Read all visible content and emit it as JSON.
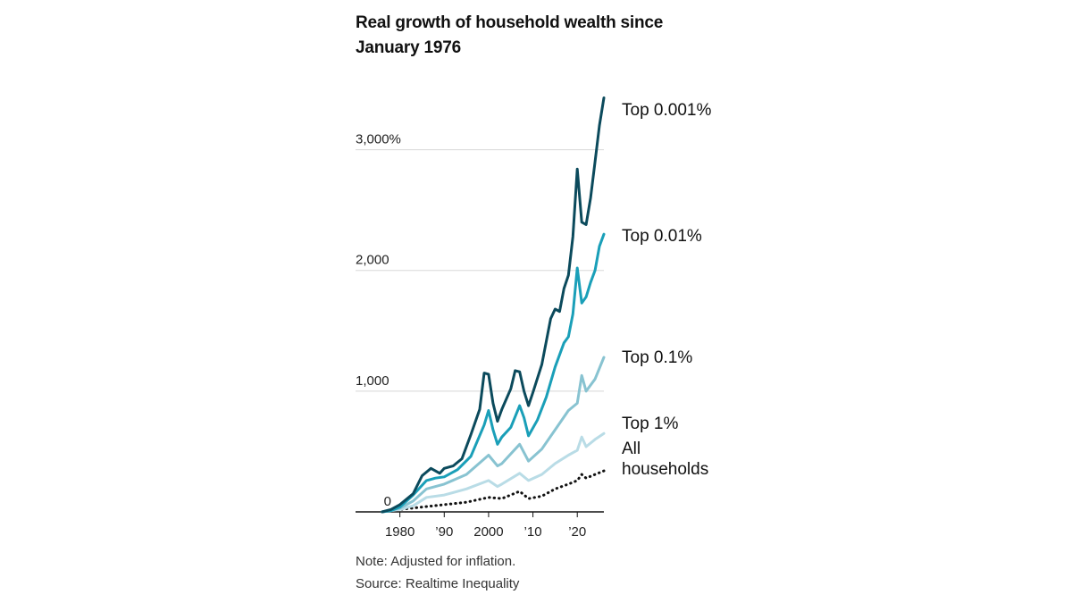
{
  "chart_data": {
    "type": "line",
    "title": "Real growth of household wealth since January 1976",
    "title_lines": [
      "Real growth of household wealth since",
      "January 1976"
    ],
    "ylabel": "",
    "xlabel": "",
    "ylim": [
      0,
      3500
    ],
    "xlim": [
      1970,
      2026
    ],
    "grid": true,
    "legend_placement": "right (direct labels)",
    "y_ticks": [
      {
        "value": 0,
        "label": "0"
      },
      {
        "value": 1000,
        "label": "1,000"
      },
      {
        "value": 2000,
        "label": "2,000"
      },
      {
        "value": 3000,
        "label": "3,000%"
      }
    ],
    "x_ticks": [
      {
        "value": 1980,
        "label": "1980"
      },
      {
        "value": 1990,
        "label": "’90"
      },
      {
        "value": 2000,
        "label": "2000"
      },
      {
        "value": 2010,
        "label": "’10"
      },
      {
        "value": 2020,
        "label": "’20"
      }
    ],
    "series": [
      {
        "name": "All households",
        "label_lines": [
          "All",
          "households"
        ],
        "color": "#111111",
        "style": "dotted",
        "points": [
          [
            1976,
            0
          ],
          [
            1980,
            20
          ],
          [
            1985,
            40
          ],
          [
            1990,
            60
          ],
          [
            1995,
            80
          ],
          [
            2000,
            120
          ],
          [
            2003,
            110
          ],
          [
            2007,
            170
          ],
          [
            2009,
            110
          ],
          [
            2012,
            130
          ],
          [
            2015,
            190
          ],
          [
            2018,
            230
          ],
          [
            2020,
            260
          ],
          [
            2021,
            310
          ],
          [
            2022,
            280
          ],
          [
            2024,
            310
          ],
          [
            2026,
            340
          ]
        ]
      },
      {
        "name": "Top 1%",
        "label_lines": [
          "Top 1%"
        ],
        "color": "#b9dce6",
        "style": "solid",
        "points": [
          [
            1976,
            0
          ],
          [
            1980,
            20
          ],
          [
            1983,
            50
          ],
          [
            1986,
            120
          ],
          [
            1990,
            140
          ],
          [
            1995,
            190
          ],
          [
            2000,
            260
          ],
          [
            2002,
            210
          ],
          [
            2003,
            230
          ],
          [
            2007,
            320
          ],
          [
            2009,
            260
          ],
          [
            2012,
            310
          ],
          [
            2015,
            400
          ],
          [
            2018,
            470
          ],
          [
            2020,
            510
          ],
          [
            2021,
            620
          ],
          [
            2022,
            540
          ],
          [
            2024,
            600
          ],
          [
            2026,
            650
          ]
        ]
      },
      {
        "name": "Top 0.1%",
        "label_lines": [
          "Top 0.1%"
        ],
        "color": "#88c3d1",
        "style": "solid",
        "points": [
          [
            1976,
            0
          ],
          [
            1980,
            30
          ],
          [
            1983,
            90
          ],
          [
            1986,
            190
          ],
          [
            1990,
            230
          ],
          [
            1995,
            310
          ],
          [
            2000,
            470
          ],
          [
            2002,
            380
          ],
          [
            2003,
            400
          ],
          [
            2007,
            560
          ],
          [
            2009,
            420
          ],
          [
            2012,
            520
          ],
          [
            2015,
            680
          ],
          [
            2018,
            840
          ],
          [
            2020,
            900
          ],
          [
            2021,
            1130
          ],
          [
            2022,
            1000
          ],
          [
            2024,
            1100
          ],
          [
            2026,
            1280
          ]
        ]
      },
      {
        "name": "Top 0.01%",
        "label_lines": [
          "Top 0.01%"
        ],
        "color": "#1a9fb8",
        "style": "solid",
        "points": [
          [
            1976,
            0
          ],
          [
            1978,
            10
          ],
          [
            1980,
            40
          ],
          [
            1983,
            140
          ],
          [
            1986,
            260
          ],
          [
            1988,
            280
          ],
          [
            1990,
            290
          ],
          [
            1993,
            350
          ],
          [
            1996,
            460
          ],
          [
            1999,
            720
          ],
          [
            2000,
            840
          ],
          [
            2001,
            680
          ],
          [
            2002,
            560
          ],
          [
            2003,
            620
          ],
          [
            2005,
            700
          ],
          [
            2007,
            880
          ],
          [
            2008,
            780
          ],
          [
            2009,
            630
          ],
          [
            2011,
            760
          ],
          [
            2013,
            950
          ],
          [
            2015,
            1200
          ],
          [
            2017,
            1400
          ],
          [
            2018,
            1450
          ],
          [
            2019,
            1640
          ],
          [
            2020,
            2020
          ],
          [
            2021,
            1730
          ],
          [
            2022,
            1780
          ],
          [
            2023,
            1900
          ],
          [
            2024,
            2000
          ],
          [
            2025,
            2200
          ],
          [
            2026,
            2300
          ]
        ]
      },
      {
        "name": "Top 0.001%",
        "label_lines": [
          "Top 0.001%"
        ],
        "color": "#0b4a5c",
        "style": "solid",
        "points": [
          [
            1976,
            0
          ],
          [
            1978,
            20
          ],
          [
            1980,
            60
          ],
          [
            1983,
            150
          ],
          [
            1985,
            300
          ],
          [
            1987,
            360
          ],
          [
            1989,
            320
          ],
          [
            1990,
            360
          ],
          [
            1992,
            380
          ],
          [
            1994,
            440
          ],
          [
            1996,
            640
          ],
          [
            1998,
            850
          ],
          [
            1999,
            1150
          ],
          [
            2000,
            1140
          ],
          [
            2001,
            900
          ],
          [
            2002,
            750
          ],
          [
            2003,
            850
          ],
          [
            2005,
            1020
          ],
          [
            2006,
            1170
          ],
          [
            2007,
            1160
          ],
          [
            2008,
            1000
          ],
          [
            2009,
            880
          ],
          [
            2010,
            990
          ],
          [
            2012,
            1220
          ],
          [
            2014,
            1600
          ],
          [
            2015,
            1680
          ],
          [
            2016,
            1660
          ],
          [
            2017,
            1850
          ],
          [
            2018,
            1960
          ],
          [
            2019,
            2280
          ],
          [
            2020,
            2840
          ],
          [
            2021,
            2400
          ],
          [
            2022,
            2380
          ],
          [
            2023,
            2600
          ],
          [
            2024,
            2900
          ],
          [
            2025,
            3200
          ],
          [
            2026,
            3430
          ]
        ]
      }
    ]
  },
  "note": "Note: Adjusted for inflation.",
  "source": "Source: Realtime Inequality"
}
